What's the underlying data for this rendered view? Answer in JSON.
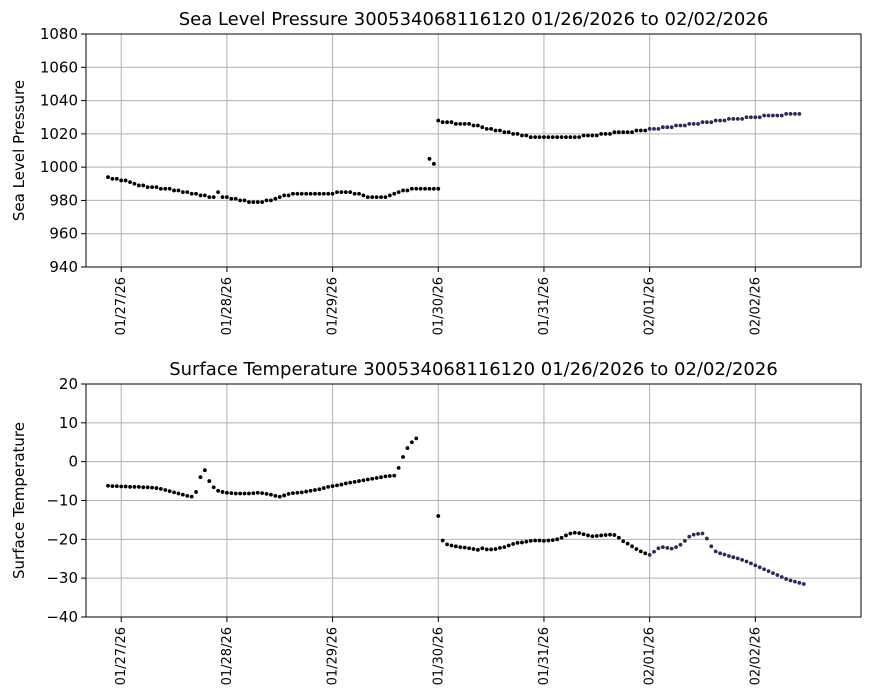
{
  "chart_data": [
    {
      "type": "scatter",
      "title": "Sea Level Pressure 300534068116120  01/26/2026 to 02/02/2026",
      "ylabel": "Sea Level Pressure",
      "xlabel": "",
      "ylim": [
        940,
        1080
      ],
      "yticks": [
        940,
        960,
        980,
        1000,
        1020,
        1040,
        1060,
        1080
      ],
      "xlim": [
        "2026-01-26T16:00",
        "2026-02-03T00:00"
      ],
      "xticks": [
        "01/27/26",
        "01/28/26",
        "01/29/26",
        "01/30/26",
        "01/31/26",
        "02/01/26",
        "02/02/26"
      ],
      "grid": true,
      "point_colors": {
        "primary": "#000000",
        "recent": "#2b2b55"
      },
      "segments": [
        {
          "x_start": "2026-01-26T21:00",
          "x_step_hours": 1,
          "values": [
            994,
            993,
            993,
            992,
            992,
            991,
            990,
            989,
            989,
            988,
            988,
            988,
            987,
            987,
            987,
            986,
            986,
            985,
            985,
            984,
            984,
            983,
            983,
            982,
            982,
            985,
            982,
            982,
            981,
            981,
            980,
            980,
            979,
            979,
            979,
            979,
            980,
            980,
            981,
            982,
            983,
            983,
            984,
            984,
            984,
            984,
            984,
            984,
            984,
            984,
            984,
            984,
            985,
            985,
            985,
            985,
            984,
            984,
            983,
            982,
            982,
            982,
            982,
            982,
            983,
            984,
            985,
            986,
            986,
            987,
            987,
            987,
            987,
            987,
            987,
            987
          ]
        },
        {
          "x_start": "2026-01-29T22:00",
          "x_step_hours": 1,
          "values": [
            1005,
            1002
          ]
        },
        {
          "x_start": "2026-01-30T00:00",
          "x_step_hours": 1,
          "values": [
            1028,
            1027,
            1027,
            1027,
            1026,
            1026,
            1026,
            1026,
            1025,
            1025,
            1024,
            1023,
            1023,
            1022,
            1022,
            1021,
            1021,
            1020,
            1020,
            1019,
            1019,
            1018,
            1018,
            1018,
            1018,
            1018,
            1018,
            1018,
            1018,
            1018,
            1018,
            1018,
            1018,
            1019,
            1019,
            1019,
            1019,
            1020,
            1020,
            1020,
            1021,
            1021,
            1021,
            1021,
            1021,
            1022,
            1022,
            1022,
            1023,
            1023,
            1023,
            1024,
            1024,
            1024,
            1025,
            1025,
            1025,
            1026,
            1026,
            1026,
            1027,
            1027,
            1027,
            1028,
            1028,
            1028,
            1029,
            1029,
            1029,
            1029,
            1030,
            1030,
            1030,
            1030,
            1031,
            1031,
            1031,
            1031,
            1031,
            1032,
            1032,
            1032,
            1032
          ]
        }
      ]
    },
    {
      "type": "scatter",
      "title": "Surface Temperature 300534068116120  01/26/2026 to 02/02/2026",
      "ylabel": "Surface Temperature",
      "xlabel": "",
      "ylim": [
        -40,
        20
      ],
      "yticks": [
        -40,
        -30,
        -20,
        -10,
        0,
        10,
        20
      ],
      "xlim": [
        "2026-01-26T16:00",
        "2026-02-03T00:00"
      ],
      "xticks": [
        "01/27/26",
        "01/28/26",
        "01/29/26",
        "01/30/26",
        "01/31/26",
        "02/01/26",
        "02/02/26"
      ],
      "grid": true,
      "point_colors": {
        "primary": "#000000",
        "recent": "#2b2b55"
      },
      "segments": [
        {
          "x_start": "2026-01-26T21:00",
          "x_step_hours": 1,
          "values": [
            -6.2,
            -6.3,
            -6.3,
            -6.4,
            -6.4,
            -6.5,
            -6.5,
            -6.5,
            -6.6,
            -6.6,
            -6.7,
            -6.8,
            -7,
            -7.3,
            -7.6,
            -7.9,
            -8.2,
            -8.5,
            -8.8,
            -9,
            -7.8,
            -4,
            -2.2,
            -5,
            -6.6,
            -7.5,
            -7.8,
            -8.0,
            -8.1,
            -8.2,
            -8.2,
            -8.2,
            -8.2,
            -8.1,
            -8.0,
            -8.1,
            -8.3,
            -8.5,
            -8.8,
            -9.0,
            -8.7,
            -8.3,
            -8.1,
            -8.0,
            -7.9,
            -7.7,
            -7.5,
            -7.3,
            -7.1,
            -6.8,
            -6.5,
            -6.3,
            -6.1,
            -5.9,
            -5.6,
            -5.4,
            -5.2,
            -5.0,
            -4.8,
            -4.6,
            -4.4,
            -4.2,
            -4.0,
            -3.8,
            -3.7,
            -3.6,
            -1.6,
            1.2,
            3.5,
            5.0,
            6.0
          ]
        },
        {
          "x_start": "2026-01-30T00:00",
          "x_step_hours": 1,
          "values": [
            -14,
            -20.3,
            -21.3,
            -21.6,
            -21.8,
            -22,
            -22.1,
            -22.3,
            -22.5,
            -22.7,
            -22.3,
            -22.6,
            -22.6,
            -22.5,
            -22.2,
            -22.0,
            -21.6,
            -21.2,
            -20.9,
            -20.8,
            -20.6,
            -20.4,
            -20.3,
            -20.3,
            -20.4,
            -20.3,
            -20.2,
            -20.0,
            -19.6,
            -19.0,
            -18.5,
            -18.3,
            -18.4,
            -18.7,
            -19.0,
            -19.2,
            -19.1,
            -19.0,
            -18.9,
            -18.8,
            -18.9,
            -19.6,
            -20.5,
            -21.1,
            -21.8,
            -22.5,
            -23.1,
            -23.6,
            -24.0,
            -23.2,
            -22.3,
            -22.0,
            -22.2,
            -22.4,
            -22.0,
            -21.4,
            -20.4,
            -19.3,
            -18.8,
            -18.6,
            -18.5,
            -19.8,
            -21.8,
            -23.1,
            -23.6,
            -23.9,
            -24.3,
            -24.6,
            -24.9,
            -25.3,
            -25.7,
            -26.2,
            -26.7,
            -27.2,
            -27.7,
            -28.2,
            -28.7,
            -29.2,
            -29.7,
            -30.2,
            -30.6,
            -30.9,
            -31.2,
            -31.5
          ]
        }
      ]
    }
  ]
}
